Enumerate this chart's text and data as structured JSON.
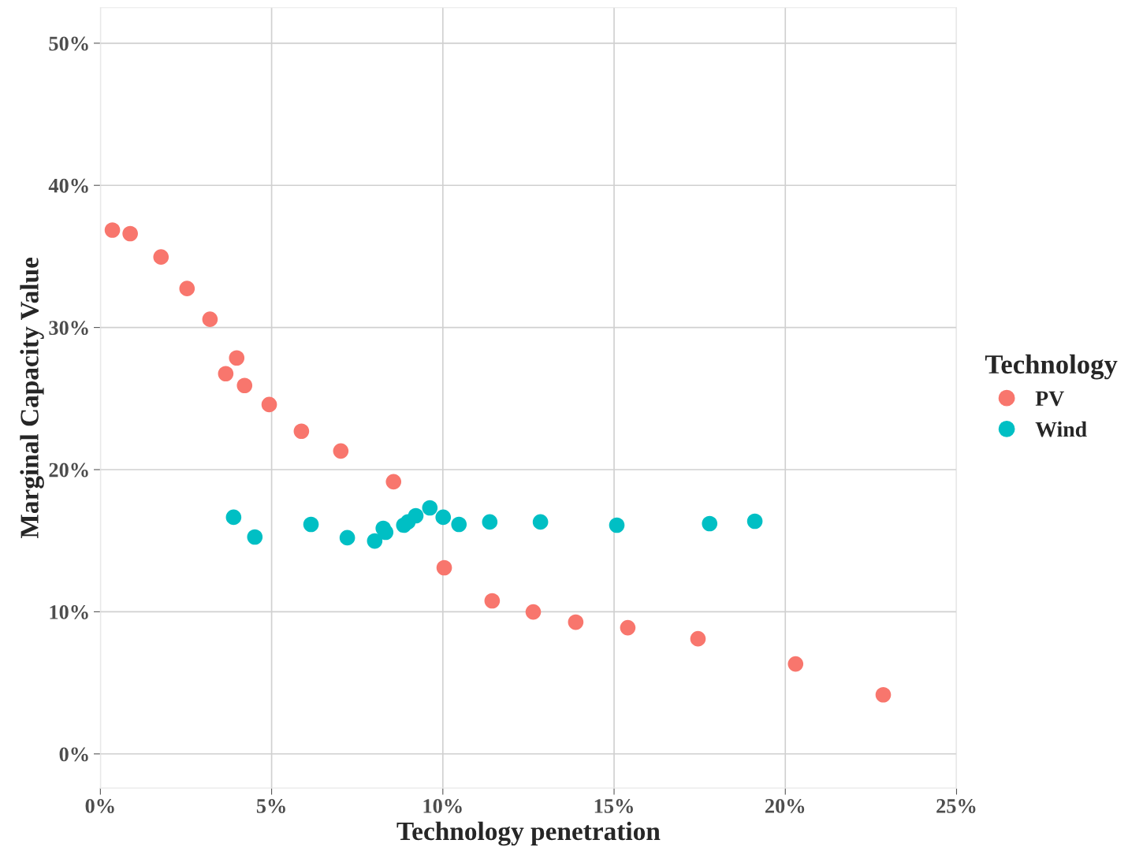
{
  "chart_data": {
    "type": "scatter",
    "xlabel": "Technology penetration",
    "ylabel": "Marginal Capacity Value",
    "legend_title": "Technology",
    "xlim": [
      0,
      25
    ],
    "ylim": [
      -2.4,
      52.5
    ],
    "xticks": [
      {
        "value": 0,
        "label": "0%"
      },
      {
        "value": 5,
        "label": "5%"
      },
      {
        "value": 10,
        "label": "10%"
      },
      {
        "value": 15,
        "label": "15%"
      },
      {
        "value": 20,
        "label": "20%"
      },
      {
        "value": 25,
        "label": "25%"
      }
    ],
    "yticks": [
      {
        "value": 0,
        "label": "0%"
      },
      {
        "value": 10,
        "label": "10%"
      },
      {
        "value": 20,
        "label": "20%"
      },
      {
        "value": 30,
        "label": "30%"
      },
      {
        "value": 40,
        "label": "40%"
      },
      {
        "value": 50,
        "label": "50%"
      }
    ],
    "grid": true,
    "legend": "right",
    "marker": "circle",
    "series": [
      {
        "name": "PV",
        "color": "#f8766d",
        "x": [
          0.35,
          0.87,
          1.77,
          2.53,
          3.2,
          3.66,
          3.98,
          4.21,
          4.93,
          5.87,
          7.02,
          8.56,
          10.04,
          11.44,
          12.64,
          13.88,
          15.4,
          17.45,
          20.3,
          22.86
        ],
        "values": [
          36.85,
          36.6,
          34.96,
          32.74,
          30.58,
          26.75,
          27.86,
          25.92,
          24.58,
          22.7,
          21.31,
          19.15,
          13.1,
          10.77,
          9.99,
          9.27,
          8.88,
          8.1,
          6.33,
          4.16
        ]
      },
      {
        "name": "Wind",
        "color": "#00bfc4",
        "x": [
          3.89,
          4.51,
          6.15,
          7.21,
          8.01,
          8.26,
          8.33,
          8.86,
          8.98,
          9.21,
          9.62,
          10.01,
          10.47,
          11.37,
          12.85,
          15.08,
          17.79,
          19.11
        ],
        "values": [
          16.65,
          15.26,
          16.15,
          15.21,
          14.98,
          15.87,
          15.59,
          16.09,
          16.32,
          16.76,
          17.31,
          16.65,
          16.15,
          16.32,
          16.32,
          16.09,
          16.2,
          16.37
        ]
      }
    ]
  }
}
